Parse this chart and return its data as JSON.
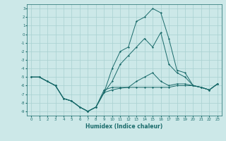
{
  "xlabel": "Humidex (Indice chaleur)",
  "bg_color": "#cce8e8",
  "grid_color": "#a8d0d0",
  "line_color": "#1a6b6b",
  "xlim": [
    -0.5,
    23.5
  ],
  "ylim": [
    -9.5,
    3.5
  ],
  "xticks": [
    0,
    1,
    2,
    3,
    4,
    5,
    6,
    7,
    8,
    9,
    10,
    11,
    12,
    13,
    14,
    15,
    16,
    17,
    18,
    19,
    20,
    21,
    22,
    23
  ],
  "yticks": [
    3,
    2,
    1,
    0,
    -1,
    -2,
    -3,
    -4,
    -5,
    -6,
    -7,
    -8,
    -9
  ],
  "series": [
    {
      "x": [
        0,
        1,
        2,
        3,
        4,
        5,
        6,
        7,
        8,
        9,
        10,
        11,
        12,
        13,
        14,
        15,
        16,
        17,
        18,
        19,
        20,
        21,
        22,
        23
      ],
      "y": [
        -5,
        -5,
        -5.5,
        -6.0,
        -7.5,
        -7.8,
        -8.5,
        -9,
        -8.5,
        -6.5,
        -6.2,
        -6.2,
        -6.2,
        -6.2,
        -6.2,
        -6.2,
        -6.2,
        -6.2,
        -6,
        -6,
        -6,
        -6.2,
        -6.5,
        -5.8
      ]
    },
    {
      "x": [
        0,
        1,
        2,
        3,
        4,
        5,
        6,
        7,
        8,
        9,
        10,
        11,
        12,
        13,
        14,
        15,
        16,
        17,
        18,
        19,
        20,
        21,
        22,
        23
      ],
      "y": [
        -5,
        -5,
        -5.5,
        -6.0,
        -7.5,
        -7.8,
        -8.5,
        -9,
        -8.5,
        -6.8,
        -6.5,
        -6.3,
        -6.2,
        -5.5,
        -5.0,
        -4.5,
        -5.5,
        -6.0,
        -5.8,
        -5.8,
        -6,
        -6.2,
        -6.5,
        -5.8
      ]
    },
    {
      "x": [
        0,
        1,
        2,
        3,
        4,
        5,
        6,
        7,
        8,
        9,
        10,
        11,
        12,
        13,
        14,
        15,
        16,
        17,
        18,
        19,
        20,
        21,
        22,
        23
      ],
      "y": [
        -5,
        -5,
        -5.5,
        -6.0,
        -7.5,
        -7.8,
        -8.5,
        -9,
        -8.5,
        -6.8,
        -5.5,
        -3.5,
        -2.5,
        -1.5,
        -0.5,
        -1.5,
        0.2,
        -3.5,
        -4.5,
        -5.0,
        -6,
        -6.2,
        -6.5,
        -5.8
      ]
    },
    {
      "x": [
        0,
        1,
        2,
        3,
        4,
        5,
        6,
        7,
        8,
        9,
        10,
        11,
        12,
        13,
        14,
        15,
        16,
        17,
        18,
        19,
        20,
        21,
        22,
        23
      ],
      "y": [
        -5,
        -5,
        -5.5,
        -6.0,
        -7.5,
        -7.8,
        -8.5,
        -9,
        -8.5,
        -6.8,
        -4.0,
        -2.0,
        -1.5,
        1.5,
        2.0,
        3.0,
        2.5,
        -0.5,
        -4.2,
        -4.5,
        -6,
        -6.2,
        -6.5,
        -5.8
      ]
    }
  ]
}
